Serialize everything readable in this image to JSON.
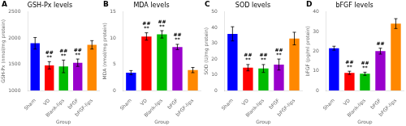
{
  "chart_data": [
    {
      "type": "bar",
      "panel_label": "A",
      "title": "GSH-Px levels",
      "x_label": "Group",
      "y_label": "GSH-Px (nmol/mg protein)",
      "categories": [
        "Sham",
        "VD",
        "Blank-lips",
        "bFGF",
        "bFGF-lips"
      ],
      "values": [
        1900,
        1480,
        1460,
        1530,
        1870
      ],
      "errors": [
        110,
        70,
        120,
        70,
        80
      ],
      "colors": [
        "#0000ff",
        "#ff0000",
        "#00bb00",
        "#9900cc",
        "#ff8800"
      ],
      "ylim": [
        1000,
        2500
      ],
      "yticks": [
        1000,
        1500,
        2000,
        2500
      ],
      "grid": false,
      "annotations": [
        {
          "category": "VD",
          "text": "**\n##"
        },
        {
          "category": "Blank-lips",
          "text": "**\n##"
        },
        {
          "category": "bFGF",
          "text": "**\n##"
        }
      ]
    },
    {
      "type": "bar",
      "panel_label": "B",
      "title": "MDA levels",
      "x_label": "Group",
      "y_label": "MDA (nmol/mg protein)",
      "categories": [
        "Sham",
        "VD",
        "Blank-lips",
        "bFGF",
        "bFGF-lips"
      ],
      "values": [
        3.4,
        10.3,
        10.7,
        8.3,
        3.9
      ],
      "errors": [
        0.4,
        0.7,
        0.7,
        0.5,
        0.5
      ],
      "colors": [
        "#0000ff",
        "#ff0000",
        "#00bb00",
        "#9900cc",
        "#ff8800"
      ],
      "ylim": [
        0,
        15
      ],
      "yticks": [
        0,
        5,
        10,
        15
      ],
      "grid": false,
      "annotations": [
        {
          "category": "VD",
          "text": "**\n##"
        },
        {
          "category": "Blank-lips",
          "text": "**\n##"
        },
        {
          "category": "bFGF",
          "text": "**\n##"
        }
      ]
    },
    {
      "type": "bar",
      "panel_label": "C",
      "title": "SOD levels",
      "x_label": "Group",
      "y_label": "SOD (U/mg protein)",
      "categories": [
        "Sham",
        "VD",
        "Blank-lips",
        "bFGF",
        "bFGF-lips"
      ],
      "values": [
        36,
        14.5,
        14.0,
        16.5,
        33
      ],
      "errors": [
        4.5,
        2.0,
        2.5,
        3.5,
        4.0
      ],
      "colors": [
        "#0000ff",
        "#ff0000",
        "#00bb00",
        "#9900cc",
        "#ff8800"
      ],
      "ylim": [
        0,
        50
      ],
      "yticks": [
        0,
        10,
        20,
        30,
        40,
        50
      ],
      "grid": false,
      "annotations": [
        {
          "category": "VD",
          "text": "**\n##"
        },
        {
          "category": "Blank-lips",
          "text": "**\n##"
        },
        {
          "category": "bFGF",
          "text": "**\n##"
        }
      ]
    },
    {
      "type": "bar",
      "panel_label": "D",
      "title": "bFGF levels",
      "x_label": "Group",
      "y_label": "bFGF (pg/ml protein)",
      "categories": [
        "Sham",
        "VD",
        "Blank-lips",
        "bFGF",
        "bFGF-lips"
      ],
      "values": [
        21.5,
        9.0,
        8.5,
        20.0,
        34.0
      ],
      "errors": [
        1.0,
        0.8,
        0.8,
        1.5,
        2.5
      ],
      "colors": [
        "#0000ff",
        "#ff0000",
        "#00bb00",
        "#9900cc",
        "#ff8800"
      ],
      "ylim": [
        0,
        40
      ],
      "yticks": [
        0,
        10,
        20,
        30,
        40
      ],
      "grid": false,
      "annotations": [
        {
          "category": "VD",
          "text": "**\n##"
        },
        {
          "category": "Blank-lips",
          "text": "**\n##"
        },
        {
          "category": "bFGF",
          "text": "##"
        }
      ]
    }
  ]
}
